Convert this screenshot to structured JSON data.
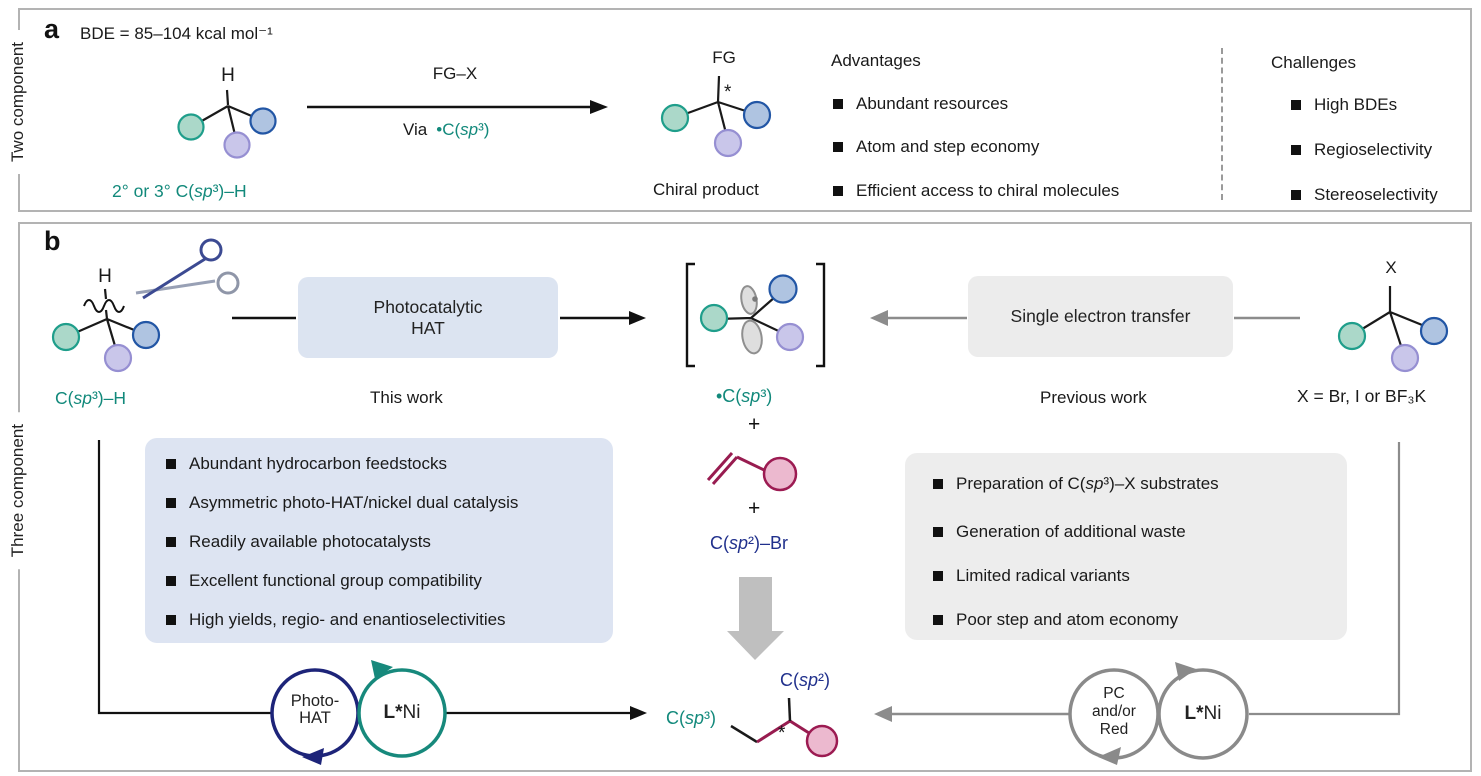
{
  "colors": {
    "teal_text": "#12897b",
    "navy_text": "#20308c",
    "maroon_bond": "#981c50",
    "teal_atom_fill": "#abd8c9",
    "teal_atom_stroke": "#1f9e8b",
    "blue_atom_fill": "#afc4e1",
    "blue_atom_stroke": "#2256a5",
    "lavender_atom_fill": "#c9c6ea",
    "lavender_atom_stroke": "#968fd2",
    "pink_atom_fill": "#ecb9cf",
    "pink_atom_stroke": "#9c1b52",
    "hat_box_bg": "#dce4f1",
    "this_work_box_bg": "#dde4f2",
    "set_box_bg": "#ececec",
    "previous_work_box_bg": "#ededed",
    "panel_border": "#b3b3b3",
    "gray_line": "#8c8c8c",
    "navy_cycle": "#1d2479",
    "teal_cycle": "#17897c",
    "gray_cycle": "#8a8a8a"
  },
  "panel_a": {
    "label": "a",
    "side_label": "Two component",
    "bde": "BDE = 85–104 kcal mol⁻¹",
    "substrate": {
      "h_label": "H",
      "caption": "2° or 3° C(sp³)–H"
    },
    "reaction_arrow": {
      "above": "FG–X",
      "below_prefix": "Via",
      "below_radical": "•C(sp³)"
    },
    "product": {
      "fg_label": "FG",
      "stereocenter": "*",
      "caption": "Chiral product"
    },
    "advantages": {
      "title": "Advantages",
      "items": [
        "Abundant resources",
        "Atom and step economy",
        "Efficient access to chiral molecules"
      ]
    },
    "challenges": {
      "title": "Challenges",
      "items": [
        "High BDEs",
        "Regioselectivity",
        "Stereoselectivity"
      ]
    }
  },
  "panel_b": {
    "label": "b",
    "side_label": "Three component",
    "substrate": {
      "h_label": "H",
      "caption": "C(sp³)–H"
    },
    "hat_box": {
      "line1": "Photocatalytic",
      "line2": "HAT"
    },
    "this_work_label": "This work",
    "radical_caption": "•C(sp³)",
    "plus_1": "+",
    "plus_2": "+",
    "aryl_bromide_label": "C(sp²)–Br",
    "set_box_label": "Single electron transfer",
    "previous_work_label": "Previous work",
    "halide": {
      "x_label": "X",
      "caption": "X = Br, I or BF₃K"
    },
    "this_work_points": [
      "Abundant hydrocarbon feedstocks",
      "Asymmetric photo-HAT/nickel dual catalysis",
      "Readily available photocatalysts",
      "Excellent functional group compatibility",
      "High yields, regio- and enantioselectivities"
    ],
    "previous_work_points": [
      "Preparation of C(sp³)–X substrates",
      "Generation of additional waste",
      "Limited radical variants",
      "Poor step and atom economy"
    ],
    "product": {
      "sp3_label": "C(sp³)",
      "sp2_label": "C(sp²)",
      "stereocenter": "*"
    },
    "left_cycles": {
      "photo_line1": "Photo-",
      "photo_line2": "HAT",
      "ni_label": "L*Ni"
    },
    "right_cycles": {
      "pc_line1": "PC",
      "pc_line2": "and/or",
      "pc_line3": "Red",
      "ni_label": "L*Ni"
    }
  }
}
